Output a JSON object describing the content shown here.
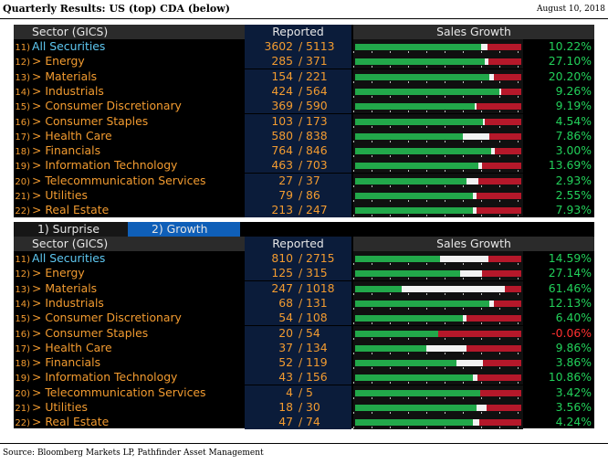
{
  "header": {
    "title": "Quarterly Results: US (top) CDA (below)",
    "date": "August 10, 2018"
  },
  "footer": {
    "source": "Source: Bloomberg Markets LP, Pathfinder Asset Management"
  },
  "columns": {
    "sector": "Sector (GICS)",
    "reported": "Reported",
    "sales_growth": "Sales Growth"
  },
  "tabs": {
    "surprise": "1) Surprise",
    "growth": "2) Growth"
  },
  "colors": {
    "positive": "#22d05a",
    "negative": "#ff3030",
    "label": "#f29b30",
    "all_label": "#5ec8f2",
    "tab_active": "#0f5fb8"
  },
  "us": [
    {
      "num": "11)",
      "label": "All Securities",
      "reported": "3602",
      "total": "5113",
      "growth": "10.22%",
      "green": 0.76,
      "white": 0.04
    },
    {
      "num": "12)",
      "label": "> Energy",
      "reported": "285",
      "total": "371",
      "growth": "27.10%",
      "green": 0.78,
      "white": 0.02
    },
    {
      "num": "13)",
      "label": "> Materials",
      "reported": "154",
      "total": "221",
      "growth": "20.20%",
      "green": 0.81,
      "white": 0.03
    },
    {
      "num": "14)",
      "label": "> Industrials",
      "reported": "424",
      "total": "564",
      "growth": "9.26%",
      "green": 0.87,
      "white": 0.01
    },
    {
      "num": "15)",
      "label": "> Consumer Discretionary",
      "reported": "369",
      "total": "590",
      "growth": "9.19%",
      "green": 0.72,
      "white": 0.01
    },
    {
      "num": "16)",
      "label": "> Consumer Staples",
      "reported": "103",
      "total": "173",
      "growth": "4.54%",
      "green": 0.77,
      "white": 0.01
    },
    {
      "num": "17)",
      "label": "> Health Care",
      "reported": "580",
      "total": "838",
      "growth": "7.86%",
      "green": 0.65,
      "white": 0.16
    },
    {
      "num": "18)",
      "label": "> Financials",
      "reported": "764",
      "total": "846",
      "growth": "3.00%",
      "green": 0.82,
      "white": 0.02
    },
    {
      "num": "19)",
      "label": "> Information Technology",
      "reported": "463",
      "total": "703",
      "growth": "13.69%",
      "green": 0.74,
      "white": 0.02
    },
    {
      "num": "20)",
      "label": "> Telecommunication Services",
      "reported": "27",
      "total": "37",
      "growth": "2.93%",
      "green": 0.67,
      "white": 0.07
    },
    {
      "num": "21)",
      "label": "> Utilities",
      "reported": "79",
      "total": "86",
      "growth": "2.55%",
      "green": 0.71,
      "white": 0.02
    },
    {
      "num": "22)",
      "label": "> Real Estate",
      "reported": "213",
      "total": "247",
      "growth": "7.93%",
      "green": 0.71,
      "white": 0.02
    }
  ],
  "cda": [
    {
      "num": "11)",
      "label": "All Securities",
      "reported": "810",
      "total": "2715",
      "growth": "14.59%",
      "green": 0.51,
      "white": 0.29
    },
    {
      "num": "12)",
      "label": "> Energy",
      "reported": "125",
      "total": "315",
      "growth": "27.14%",
      "green": 0.63,
      "white": 0.13
    },
    {
      "num": "13)",
      "label": "> Materials",
      "reported": "247",
      "total": "1018",
      "growth": "61.46%",
      "green": 0.28,
      "white": 0.62
    },
    {
      "num": "14)",
      "label": "> Industrials",
      "reported": "68",
      "total": "131",
      "growth": "12.13%",
      "green": 0.81,
      "white": 0.03
    },
    {
      "num": "15)",
      "label": "> Consumer Discretionary",
      "reported": "54",
      "total": "108",
      "growth": "6.40%",
      "green": 0.65,
      "white": 0.02
    },
    {
      "num": "16)",
      "label": "> Consumer Staples",
      "reported": "20",
      "total": "54",
      "growth": "-0.06%",
      "green": 0.5,
      "white": 0.0
    },
    {
      "num": "17)",
      "label": "> Health Care",
      "reported": "37",
      "total": "134",
      "growth": "9.86%",
      "green": 0.43,
      "white": 0.24
    },
    {
      "num": "18)",
      "label": "> Financials",
      "reported": "52",
      "total": "119",
      "growth": "3.86%",
      "green": 0.61,
      "white": 0.16
    },
    {
      "num": "19)",
      "label": "> Information Technology",
      "reported": "43",
      "total": "156",
      "growth": "10.86%",
      "green": 0.71,
      "white": 0.03
    },
    {
      "num": "20)",
      "label": "> Telecommunication Services",
      "reported": "4",
      "total": "5",
      "growth": "3.42%",
      "green": 0.75,
      "white": 0.0
    },
    {
      "num": "21)",
      "label": "> Utilities",
      "reported": "18",
      "total": "30",
      "growth": "3.56%",
      "green": 0.73,
      "white": 0.06
    },
    {
      "num": "22)",
      "label": "> Real Estate",
      "reported": "47",
      "total": "74",
      "growth": "4.24%",
      "green": 0.71,
      "white": 0.04
    }
  ]
}
